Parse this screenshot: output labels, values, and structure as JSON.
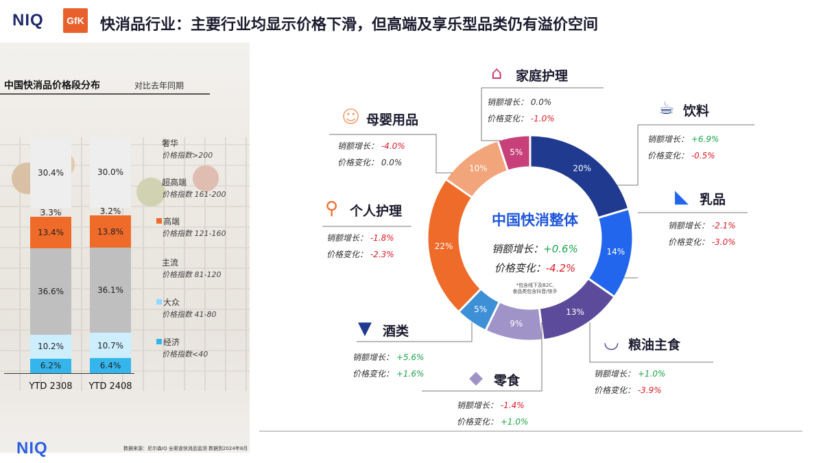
{
  "header": {
    "logo_niq": "NIQ",
    "logo_gfk": "GfK",
    "title": "快消品行业：主要行业均显示价格下滑，但高端及享乐型品类仍有溢价空间"
  },
  "colors": {
    "accent_orange": "#ef6b2a",
    "gray": "#bfbfbf",
    "light_blue": "#cdeeff",
    "blue": "#34b6ec",
    "positive": "#1aa34a",
    "negative": "#d91c28"
  },
  "chart_data": [
    {
      "type": "bar",
      "stacked": true,
      "title": "中国快消品价格段分布",
      "subtitle": "对比去年同期",
      "categories": [
        "YTD 2308",
        "YTD 2408"
      ],
      "series": [
        {
          "name": "经济",
          "sub": "价格指数<40",
          "values": [
            6.2,
            6.4
          ],
          "labels": [
            "6.2%",
            "6.4%"
          ],
          "color": "#34b6ec"
        },
        {
          "name": "大众",
          "sub": "价格指数 41-80",
          "values": [
            10.2,
            10.7
          ],
          "labels": [
            "10.2%",
            "10.7%"
          ],
          "color": "#cdeeff"
        },
        {
          "name": "主流",
          "sub": "价格指数 81-120",
          "values": [
            36.6,
            36.1
          ],
          "labels": [
            "36.6%",
            "36.1%"
          ],
          "color": "#bfbfbf"
        },
        {
          "name": "高端",
          "sub": "价格指数 121-160",
          "values": [
            13.4,
            13.8
          ],
          "labels": [
            "13.4%",
            "13.8%"
          ],
          "color": "#ef6b2a"
        },
        {
          "name": "超高端",
          "sub": "价格指数 161-200",
          "values": [
            3.3,
            3.2
          ],
          "labels": [
            "3.3%",
            "3.2%"
          ],
          "color": "#d9d9d9"
        },
        {
          "name": "奢华",
          "sub": "价格指数>200",
          "values": [
            30.4,
            30.0
          ],
          "labels": [
            "30.4%",
            "30.0%"
          ],
          "color": "#eeeeee"
        }
      ]
    },
    {
      "type": "pie",
      "donut": true,
      "center_title": "中国快消整体",
      "center_sales_label": "销额增长：",
      "center_sales_value": "+0.6%",
      "center_price_label": "价格变化：",
      "center_price_value": "-4.2%",
      "center_note_1": "*包含线下及B2C,",
      "center_note_2": "食品类包含抖音/快手",
      "slices": [
        {
          "name": "饮料",
          "value": 20,
          "label": "20%",
          "color": "#1f3a8f",
          "sales": "+6.9%",
          "price": "-0.5%"
        },
        {
          "name": "乳品",
          "value": 14,
          "label": "14%",
          "color": "#2266ee",
          "sales": "-2.1%",
          "price": "-3.0%"
        },
        {
          "name": "粮油主食",
          "value": 13,
          "label": "13%",
          "color": "#5b4b9a",
          "sales": "+1.0%",
          "price": "-3.9%"
        },
        {
          "name": "零食",
          "value": 9,
          "label": "9%",
          "color": "#9f93c8",
          "sales": "-1.4%",
          "price": "+1.0%"
        },
        {
          "name": "酒类",
          "value": 5,
          "label": "5%",
          "color": "#3d8fd6",
          "sales": "+5.6%",
          "price": "+1.6%"
        },
        {
          "name": "个人护理",
          "value": 22,
          "label": "22%",
          "color": "#ef6b2a",
          "sales": "-1.8%",
          "price": "-2.3%"
        },
        {
          "name": "母婴用品",
          "value": 10,
          "label": "10%",
          "color": "#f2a57a",
          "sales": "-4.0%",
          "price": "0.0%"
        },
        {
          "name": "家庭护理",
          "value": 5,
          "label": "5%",
          "color": "#c8407a",
          "sales": "0.0%",
          "price": "-1.0%"
        }
      ]
    }
  ],
  "stat_labels": {
    "sales": "销额增长：",
    "price": "价格变化："
  },
  "footer": {
    "logo": "NIQ",
    "source": "数据来源：尼尔森IQ 全渠道快消品监测 数据到2024年8月"
  }
}
